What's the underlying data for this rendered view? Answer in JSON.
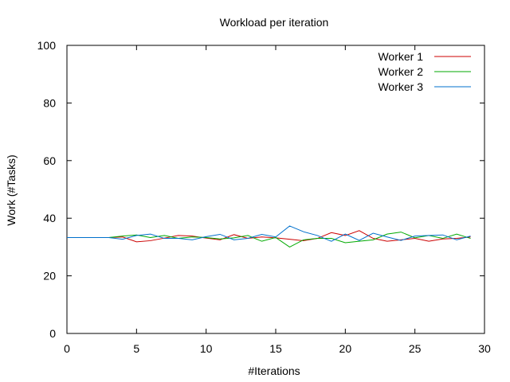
{
  "chart_data": {
    "type": "line",
    "title": "Workload per iteration",
    "xlabel": "#Iterations",
    "ylabel": "Work (#Tasks)",
    "xlim": [
      0,
      30
    ],
    "ylim": [
      0,
      100
    ],
    "xticks": [
      0,
      5,
      10,
      15,
      20,
      25,
      30
    ],
    "yticks": [
      0,
      20,
      40,
      60,
      80,
      100
    ],
    "grid": false,
    "legend": "top-right",
    "x": [
      0,
      1,
      2,
      3,
      4,
      5,
      6,
      7,
      8,
      9,
      10,
      11,
      12,
      13,
      14,
      15,
      16,
      17,
      18,
      19,
      20,
      21,
      22,
      23,
      24,
      25,
      26,
      27,
      28,
      29
    ],
    "series": [
      {
        "name": "Worker 1",
        "color": "#cc0000",
        "values": [
          33.3,
          33.3,
          33.3,
          33.3,
          33.5,
          31.8,
          32.2,
          33.1,
          34.0,
          33.8,
          33.1,
          32.5,
          34.3,
          33.0,
          33.5,
          33.2,
          32.7,
          32.2,
          33.0,
          35.0,
          34.0,
          35.7,
          33.0,
          32.0,
          32.5,
          33.0,
          32.0,
          32.8,
          33.0,
          33.5
        ]
      },
      {
        "name": "Worker 2",
        "color": "#00aa00",
        "values": [
          33.3,
          33.3,
          33.3,
          33.3,
          33.8,
          34.2,
          33.3,
          34.0,
          33.0,
          33.5,
          33.3,
          32.8,
          33.2,
          34.0,
          32.0,
          33.3,
          30.0,
          32.5,
          33.0,
          33.0,
          31.5,
          32.0,
          32.5,
          34.5,
          35.2,
          33.2,
          34.0,
          33.0,
          34.5,
          33.0
        ]
      },
      {
        "name": "Worker 3",
        "color": "#0070cc",
        "values": [
          33.3,
          33.3,
          33.3,
          33.3,
          32.7,
          34.0,
          34.5,
          33.0,
          33.0,
          32.5,
          33.6,
          34.4,
          32.5,
          33.0,
          34.4,
          33.5,
          37.3,
          35.3,
          34.0,
          32.0,
          34.5,
          32.3,
          34.8,
          33.5,
          32.3,
          33.8,
          34.0,
          34.2,
          32.5,
          33.8
        ]
      }
    ]
  }
}
